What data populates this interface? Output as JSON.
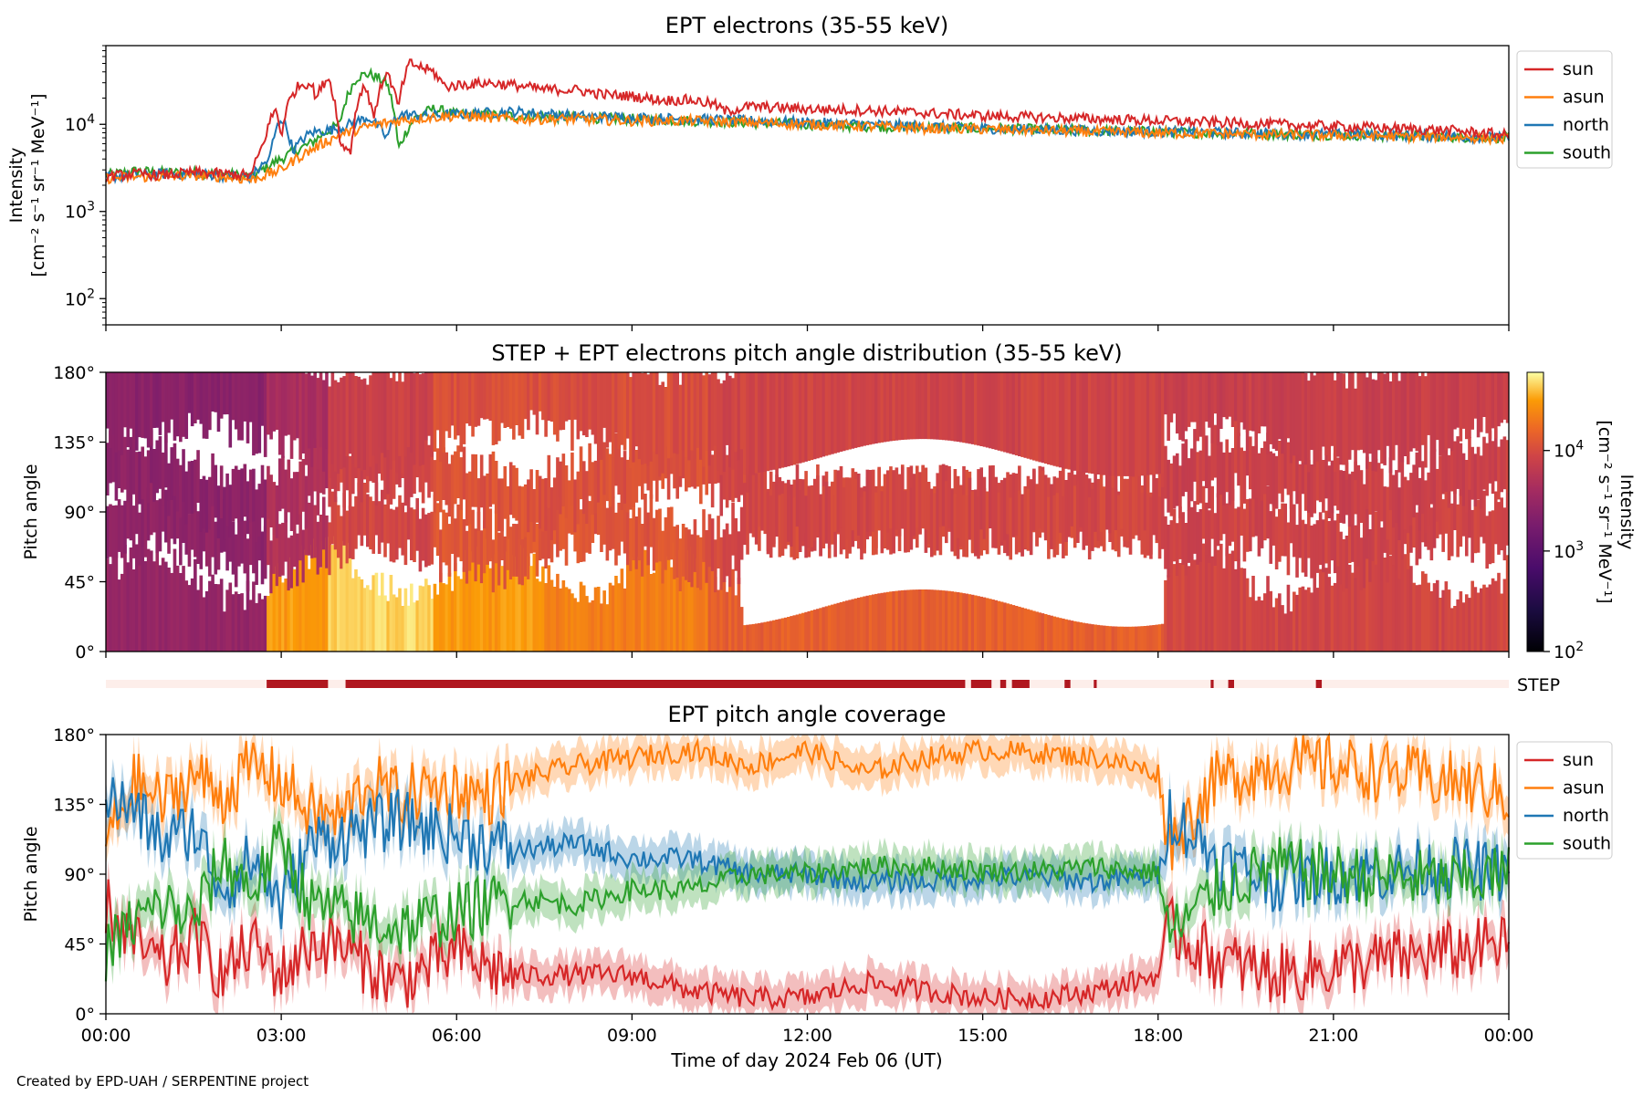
{
  "credit": "Created by EPD-UAH / SERPENTINE project",
  "colors": {
    "sun": "#d62728",
    "asun": "#ff7f0e",
    "north": "#1f77b4",
    "south": "#2ca02c",
    "step_bar": "#b0171f",
    "step_bg": "#fdeeea"
  },
  "chart_data": [
    {
      "type": "line",
      "title": "EPT electrons (35-55 keV)",
      "ylabel": "Intensity",
      "yunit": "[cm⁻² s⁻¹ sr⁻¹ MeV⁻¹]",
      "yscale": "log",
      "ylim": [
        50,
        80000
      ],
      "yticks": [
        {
          "v": 100,
          "base": "10",
          "exp": "2"
        },
        {
          "v": 1000,
          "base": "10",
          "exp": "3"
        },
        {
          "v": 10000,
          "base": "10",
          "exp": "4"
        }
      ],
      "xlim": [
        0,
        24
      ],
      "grid": false,
      "legend": "outside-right",
      "series": [
        {
          "name": "sun",
          "color": "#d62728",
          "x": [
            0,
            0.5,
            1,
            1.5,
            2,
            2.5,
            2.7,
            2.9,
            3.0,
            3.1,
            3.3,
            3.5,
            3.6,
            3.8,
            4.0,
            4.2,
            4.4,
            4.6,
            4.8,
            5.0,
            5.2,
            5.4,
            5.6,
            5.8,
            6.0,
            6.5,
            7.0,
            7.5,
            8.0,
            8.5,
            9.0,
            9.5,
            10.0,
            10.4,
            10.6,
            11.0,
            12.0,
            13.0,
            14.0,
            15.0,
            16.0,
            17.0,
            18.0,
            19.0,
            20.0,
            21.0,
            22.0,
            23.0,
            24.0
          ],
          "y": [
            2500,
            2700,
            2600,
            2800,
            2700,
            2600,
            6000,
            15000,
            7000,
            16000,
            28000,
            30000,
            20000,
            35000,
            6000,
            5000,
            28000,
            12000,
            40000,
            15000,
            50000,
            45000,
            40000,
            27000,
            28000,
            30000,
            28000,
            25000,
            25000,
            22000,
            21000,
            19000,
            19000,
            17000,
            14000,
            16000,
            15000,
            14500,
            13500,
            12500,
            12000,
            11500,
            11000,
            10500,
            10000,
            9500,
            9000,
            8500,
            7500
          ]
        },
        {
          "name": "asun",
          "color": "#ff7f0e",
          "x": [
            0,
            0.5,
            1,
            1.5,
            2,
            2.5,
            3.0,
            3.5,
            4.0,
            4.5,
            5.0,
            5.5,
            6.0,
            6.5,
            7.0,
            8.0,
            9.0,
            10.0,
            11.0,
            12.0,
            13.0,
            14.0,
            15.0,
            16.0,
            17.0,
            18.0,
            19.0,
            20.0,
            21.0,
            22.0,
            23.0,
            24.0
          ],
          "y": [
            2400,
            2500,
            2500,
            2600,
            2500,
            2300,
            3000,
            5000,
            7500,
            9500,
            11000,
            12000,
            12500,
            12000,
            11500,
            11500,
            11000,
            11000,
            10500,
            10000,
            9500,
            9000,
            8800,
            8500,
            8200,
            8000,
            7800,
            7600,
            7500,
            7300,
            7200,
            6800
          ]
        },
        {
          "name": "north",
          "color": "#1f77b4",
          "x": [
            0,
            0.5,
            1,
            1.5,
            2,
            2.5,
            2.8,
            3.0,
            3.2,
            3.5,
            4.0,
            4.5,
            4.8,
            5.0,
            5.5,
            6.0,
            7.0,
            8.0,
            9.0,
            10.0,
            11.0,
            12.0,
            13.0,
            14.0,
            15.0,
            16.0,
            17.0,
            18.0,
            19.0,
            20.0,
            21.0,
            22.0,
            23.0,
            24.0
          ],
          "y": [
            2500,
            2600,
            2700,
            2700,
            2600,
            2500,
            4000,
            12000,
            5000,
            8000,
            9000,
            12000,
            7000,
            13000,
            12500,
            13000,
            14000,
            12500,
            12000,
            11500,
            11000,
            10500,
            10000,
            9500,
            9000,
            8700,
            8400,
            8200,
            8000,
            7800,
            7700,
            7500,
            7300,
            7000
          ]
        },
        {
          "name": "south",
          "color": "#2ca02c",
          "x": [
            0,
            0.5,
            1,
            1.5,
            2,
            2.5,
            3.0,
            3.5,
            4.0,
            4.3,
            4.5,
            4.8,
            5.0,
            5.3,
            5.6,
            6.0,
            7.0,
            8.0,
            9.0,
            10.0,
            11.0,
            12.0,
            13.0,
            14.0,
            15.0,
            16.0,
            17.0,
            18.0,
            19.0,
            20.0,
            21.0,
            22.0,
            23.0,
            24.0
          ],
          "y": [
            2600,
            2900,
            2800,
            2800,
            2700,
            2500,
            4000,
            6000,
            10000,
            35000,
            38000,
            30000,
            5000,
            12000,
            15000,
            13000,
            12500,
            12000,
            11500,
            11000,
            10500,
            10000,
            9500,
            9200,
            9000,
            8700,
            8400,
            8200,
            8000,
            7800,
            7600,
            7400,
            7200,
            7000
          ]
        }
      ]
    },
    {
      "type": "heatmap",
      "title": "STEP + EPT electrons pitch angle distribution (35-55 keV)",
      "ylabel": "Pitch angle",
      "yticks": [
        "0°",
        "45°",
        "90°",
        "135°",
        "180°"
      ],
      "ylim": [
        0,
        180
      ],
      "xlim": [
        0,
        24
      ],
      "colorbar": {
        "label": "Intensity",
        "unit": "[cm⁻² s⁻¹ sr⁻¹ MeV⁻¹]",
        "scale": "log",
        "range": [
          100,
          60000
        ],
        "colormap": "inferno",
        "ticks": [
          {
            "v": 100,
            "base": "10",
            "exp": "2"
          },
          {
            "v": 1000,
            "base": "10",
            "exp": "3"
          },
          {
            "v": 10000,
            "base": "10",
            "exp": "4"
          }
        ]
      },
      "segments": [
        {
          "x0": 0,
          "x1": 2.75,
          "low": 3000,
          "mid": 2700
        },
        {
          "x0": 2.75,
          "x1": 3.8,
          "low": 30000,
          "mid": 5000
        },
        {
          "x0": 3.8,
          "x1": 5.6,
          "low": 45000,
          "mid": 9000
        },
        {
          "x0": 5.6,
          "x1": 7.5,
          "low": 30000,
          "mid": 12000
        },
        {
          "x0": 7.5,
          "x1": 10.3,
          "low": 22000,
          "mid": 11500
        },
        {
          "x0": 10.3,
          "x1": 18.1,
          "low": 14000,
          "mid": 9500
        },
        {
          "x0": 18.1,
          "x1": 24,
          "low": 9000,
          "mid": 8500
        }
      ]
    },
    {
      "type": "bar",
      "label": "STEP",
      "xlim": [
        0,
        24
      ],
      "intervals": [
        [
          2.75,
          3.8
        ],
        [
          4.1,
          14.7
        ],
        [
          14.8,
          15.15
        ],
        [
          15.3,
          15.4
        ],
        [
          15.5,
          15.8
        ],
        [
          16.4,
          16.5
        ],
        [
          16.9,
          16.95
        ],
        [
          18.9,
          18.95
        ],
        [
          19.2,
          19.3
        ],
        [
          20.7,
          20.8
        ]
      ]
    },
    {
      "type": "line",
      "title": "EPT pitch angle coverage",
      "ylabel": "Pitch angle",
      "xlabel": "Time of day 2024 Feb 06 (UT)",
      "ylim": [
        0,
        180
      ],
      "yticks": [
        "0°",
        "45°",
        "90°",
        "135°",
        "180°"
      ],
      "xticks": [
        "00:00",
        "03:00",
        "06:00",
        "09:00",
        "12:00",
        "15:00",
        "18:00",
        "21:00",
        "00:00"
      ],
      "xlim": [
        0,
        24
      ],
      "band": 12,
      "legend": "outside-right",
      "series": [
        {
          "name": "sun",
          "color": "#d62728",
          "x": [
            0,
            0.5,
            1,
            1.5,
            2,
            2.5,
            3,
            3.5,
            4,
            4.5,
            5,
            5.5,
            6,
            6.5,
            7,
            8,
            9,
            10,
            11,
            12,
            13,
            14,
            15,
            16,
            17,
            17.5,
            18,
            18.2,
            19,
            20,
            21,
            22,
            23,
            24
          ],
          "y": [
            70,
            45,
            30,
            50,
            25,
            45,
            25,
            45,
            45,
            30,
            20,
            30,
            40,
            30,
            25,
            25,
            25,
            15,
            10,
            10,
            20,
            15,
            10,
            10,
            15,
            20,
            25,
            55,
            35,
            25,
            30,
            35,
            40,
            45
          ]
        },
        {
          "name": "asun",
          "color": "#ff7f0e",
          "x": [
            0,
            0.5,
            1,
            1.5,
            2,
            2.5,
            3,
            3.5,
            4,
            4.5,
            5,
            5.5,
            6,
            6.5,
            7,
            8,
            9,
            10,
            11,
            12,
            13,
            14,
            15,
            16,
            17,
            17.5,
            18,
            18.2,
            19,
            20,
            21,
            22,
            23,
            24
          ],
          "y": [
            110,
            150,
            135,
            155,
            140,
            160,
            150,
            130,
            125,
            150,
            140,
            145,
            145,
            140,
            150,
            160,
            165,
            170,
            160,
            170,
            155,
            165,
            170,
            168,
            165,
            160,
            155,
            110,
            150,
            160,
            160,
            155,
            150,
            140
          ]
        },
        {
          "name": "north",
          "color": "#1f77b4",
          "x": [
            0,
            0.5,
            1,
            1.5,
            2,
            2.5,
            3,
            3.5,
            4,
            4.5,
            5,
            5.5,
            6,
            6.5,
            7,
            8,
            9,
            10,
            11,
            12,
            13,
            14,
            15,
            16,
            17,
            17.5,
            18,
            18.2,
            19,
            20,
            21,
            22,
            23,
            24
          ],
          "y": [
            140,
            130,
            110,
            120,
            80,
            100,
            70,
            110,
            115,
            120,
            125,
            120,
            115,
            110,
            105,
            110,
            100,
            100,
            90,
            90,
            85,
            85,
            88,
            88,
            85,
            88,
            88,
            130,
            100,
            85,
            90,
            92,
            95,
            90
          ]
        },
        {
          "name": "south",
          "color": "#2ca02c",
          "x": [
            0,
            0.5,
            1,
            1.5,
            2,
            2.5,
            3,
            3.5,
            4,
            4.5,
            5,
            5.5,
            6,
            6.5,
            7,
            8,
            9,
            10,
            11,
            12,
            13,
            14,
            15,
            16,
            17,
            17.5,
            18,
            18.2,
            19,
            20,
            21,
            22,
            23,
            24
          ],
          "y": [
            40,
            60,
            70,
            60,
            100,
            80,
            110,
            70,
            65,
            60,
            55,
            60,
            65,
            70,
            75,
            70,
            80,
            80,
            90,
            90,
            95,
            95,
            92,
            92,
            95,
            92,
            92,
            50,
            80,
            95,
            90,
            88,
            85,
            90
          ]
        }
      ]
    }
  ]
}
